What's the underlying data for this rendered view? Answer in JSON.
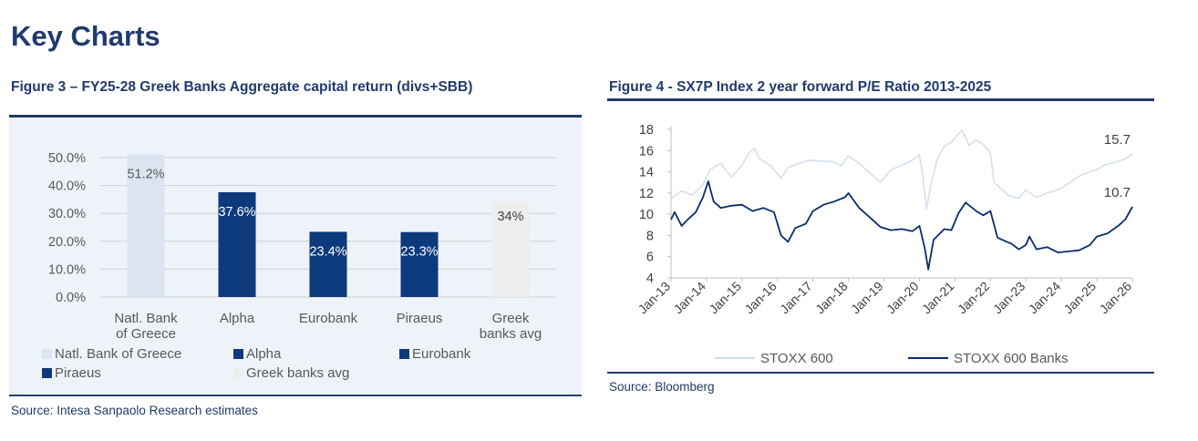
{
  "page": {
    "title": "Key Charts"
  },
  "figure3": {
    "title": "Figure 3 – FY25-28 Greek Banks Aggregate capital return (divs+SBB)",
    "source": "Source: Intesa Sanpaolo Research estimates",
    "chart_data": {
      "type": "bar",
      "title": "Figure 3 – FY25-28 Greek Banks Aggregate capital return (divs+SBB)",
      "categories": [
        [
          "Natl. Bank",
          "of Greece"
        ],
        [
          "Alpha"
        ],
        [
          "Eurobank"
        ],
        [
          "Piraeus"
        ],
        [
          "Greek",
          "banks avg"
        ]
      ],
      "values": [
        51.2,
        37.6,
        23.4,
        23.3,
        34
      ],
      "data_labels": [
        "51.2%",
        "37.6%",
        "23.4%",
        "23.3%",
        "34%"
      ],
      "colors": [
        "#dbe5f1",
        "#0c3a7c",
        "#0c3a7c",
        "#0c3a7c",
        "#ededed"
      ],
      "label_colors": [
        "#595959",
        "#ffffff",
        "#ffffff",
        "#ffffff",
        "#404040"
      ],
      "ylim": [
        0,
        50
      ],
      "yticks": [
        "0.0%",
        "10.0%",
        "20.0%",
        "30.0%",
        "40.0%",
        "50.0%"
      ],
      "xlabel": "",
      "ylabel": "",
      "legend": [
        {
          "name": "Natl. Bank of Greece",
          "color": "#dbe5f1"
        },
        {
          "name": "Alpha",
          "color": "#0c3a7c"
        },
        {
          "name": "Eurobank",
          "color": "#0c3a7c"
        },
        {
          "name": "Piraeus",
          "color": "#0c3a7c"
        },
        {
          "name": "Greek banks avg",
          "color": "#ededed"
        }
      ],
      "grid": true
    }
  },
  "figure4": {
    "title": "Figure 4 - SX7P Index 2 year forward P/E Ratio 2013-2025",
    "source": "Source: Bloomberg",
    "chart_data": {
      "type": "line",
      "title": "Figure 4 - SX7P Index 2 year forward P/E Ratio 2013-2025",
      "ylim": [
        4,
        18
      ],
      "yticks": [
        4,
        6,
        8,
        10,
        12,
        14,
        16,
        18
      ],
      "xlim": [
        2013.0,
        2026.0
      ],
      "xticks": [
        "Jan-13",
        "Jan-14",
        "Jan-15",
        "Jan-16",
        "Jan-17",
        "Jan-18",
        "Jan-19",
        "Jan-20",
        "Jan-21",
        "Jan-22",
        "Jan-23",
        "Jan-24",
        "Jan-25",
        "Jan-26"
      ],
      "grid": false,
      "series": [
        {
          "name": "STOXX 600",
          "color": "#d3dff0",
          "end_label": "15.7",
          "x": [
            2013.0,
            2013.3,
            2013.6,
            2013.9,
            2014.1,
            2014.4,
            2014.7,
            2015.0,
            2015.2,
            2015.35,
            2015.5,
            2015.8,
            2016.1,
            2016.3,
            2016.6,
            2016.9,
            2017.2,
            2017.5,
            2017.8,
            2018.0,
            2018.3,
            2018.6,
            2018.9,
            2019.2,
            2019.5,
            2019.8,
            2020.0,
            2020.1,
            2020.2,
            2020.3,
            2020.5,
            2020.7,
            2020.9,
            2021.1,
            2021.2,
            2021.4,
            2021.6,
            2021.8,
            2022.0,
            2022.1,
            2022.3,
            2022.5,
            2022.8,
            2023.0,
            2023.3,
            2023.6,
            2023.9,
            2024.2,
            2024.5,
            2024.8,
            2025.0,
            2025.2,
            2025.5,
            2025.8,
            2026.0
          ],
          "values": [
            11.5,
            12.2,
            11.8,
            12.8,
            14.2,
            14.8,
            13.5,
            14.6,
            15.8,
            16.2,
            15.2,
            14.6,
            13.4,
            14.4,
            14.8,
            15.1,
            15.0,
            15.0,
            14.6,
            15.5,
            14.8,
            13.9,
            13.0,
            14.2,
            14.6,
            15.1,
            15.6,
            13.5,
            10.5,
            12.4,
            15.2,
            16.4,
            16.8,
            17.6,
            17.9,
            16.5,
            17.0,
            16.6,
            15.8,
            13.0,
            12.4,
            11.8,
            11.5,
            12.3,
            11.6,
            12.0,
            12.3,
            12.9,
            13.6,
            14.0,
            14.2,
            14.6,
            14.9,
            15.2,
            15.7
          ]
        },
        {
          "name": "STOXX 600 Banks",
          "color": "#0c2d6b",
          "end_label": "10.7",
          "x": [
            2013.0,
            2013.1,
            2013.3,
            2013.5,
            2013.7,
            2013.9,
            2014.05,
            2014.2,
            2014.4,
            2014.7,
            2015.0,
            2015.3,
            2015.6,
            2015.9,
            2016.1,
            2016.3,
            2016.5,
            2016.8,
            2017.0,
            2017.3,
            2017.6,
            2017.9,
            2018.0,
            2018.3,
            2018.6,
            2018.9,
            2019.2,
            2019.5,
            2019.8,
            2020.0,
            2020.15,
            2020.25,
            2020.4,
            2020.7,
            2020.9,
            2021.1,
            2021.3,
            2021.6,
            2021.8,
            2022.0,
            2022.2,
            2022.4,
            2022.6,
            2022.8,
            2023.0,
            2023.1,
            2023.3,
            2023.6,
            2023.9,
            2024.2,
            2024.5,
            2024.8,
            2025.0,
            2025.3,
            2025.6,
            2025.8,
            2026.0
          ],
          "values": [
            9.5,
            10.2,
            8.9,
            9.6,
            10.2,
            11.6,
            13.1,
            11.2,
            10.6,
            10.8,
            10.9,
            10.3,
            10.6,
            10.2,
            8.0,
            7.4,
            8.7,
            9.1,
            10.3,
            10.9,
            11.2,
            11.6,
            12.0,
            10.6,
            9.7,
            8.8,
            8.5,
            8.6,
            8.4,
            8.9,
            6.8,
            4.8,
            7.6,
            8.6,
            8.5,
            10.1,
            11.1,
            10.3,
            9.9,
            10.3,
            7.8,
            7.5,
            7.2,
            6.7,
            7.1,
            7.9,
            6.7,
            6.9,
            6.4,
            6.5,
            6.6,
            7.1,
            7.9,
            8.2,
            8.9,
            9.5,
            10.7
          ]
        }
      ],
      "legend": [
        {
          "name": "STOXX 600",
          "color": "#d3dff0"
        },
        {
          "name": "STOXX 600 Banks",
          "color": "#0c2d6b"
        }
      ]
    }
  }
}
